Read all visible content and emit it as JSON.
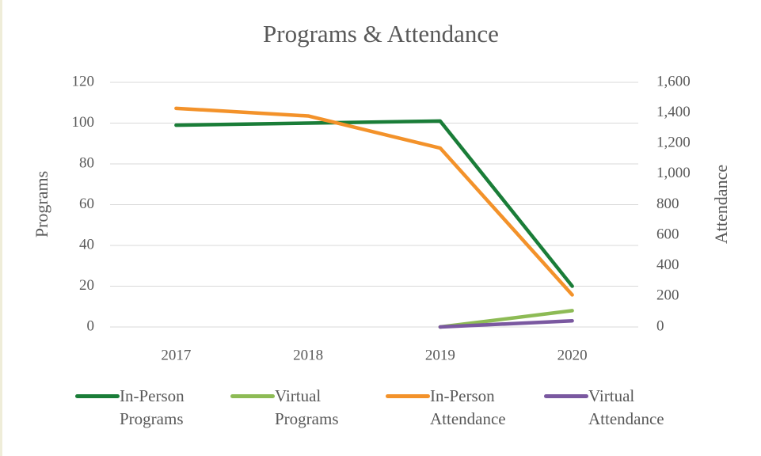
{
  "chart_data": {
    "type": "line",
    "title": "Programs & Attendance",
    "categories": [
      "2017",
      "2018",
      "2019",
      "2020"
    ],
    "ylabel": "Programs",
    "y2label": "Attendance",
    "ylim": [
      0,
      120
    ],
    "yticks": [
      0,
      20,
      40,
      60,
      80,
      100,
      120
    ],
    "y2lim": [
      0,
      1600
    ],
    "y2ticks": [
      0,
      200,
      400,
      600,
      800,
      {
        "value": 1000,
        "label": "1,000"
      },
      {
        "value": 1200,
        "label": "1,200"
      },
      {
        "value": 1400,
        "label": "1,400"
      },
      {
        "value": 1600,
        "label": "1,600"
      }
    ],
    "grid": true,
    "legend": "bottom",
    "series": [
      {
        "name": "In-Person Programs",
        "color": "#1a7d38",
        "values": [
          99,
          100,
          101,
          20
        ]
      },
      {
        "name": "Virtual Programs",
        "color": "#8dbb55",
        "values": [
          null,
          null,
          0,
          8
        ]
      },
      {
        "name": "In-Person Attendance",
        "color": "#f3922a",
        "values": [
          1430,
          1380,
          1170,
          210
        ],
        "axis": "y2"
      },
      {
        "name": "Virtual Attendance",
        "color": "#7a58a0",
        "values": [
          null,
          null,
          0,
          40
        ],
        "axis": "y2"
      }
    ]
  }
}
